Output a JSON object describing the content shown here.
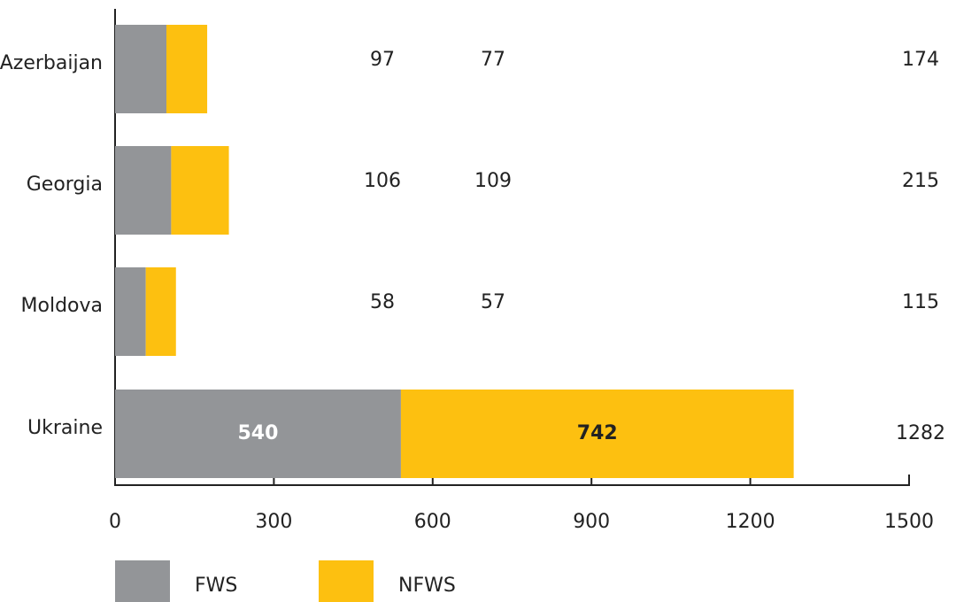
{
  "chart_data": {
    "type": "stacked-barh",
    "categories": [
      "Azerbaijan",
      "Georgia",
      "Moldova",
      "Ukraine"
    ],
    "series": [
      {
        "name": "FWS",
        "color": "#939598",
        "values": [
          97,
          106,
          58,
          540
        ]
      },
      {
        "name": "NFWS",
        "color": "#fdc010",
        "values": [
          77,
          109,
          57,
          742
        ]
      }
    ],
    "totals": [
      174,
      215,
      115,
      1282
    ],
    "xlim": [
      0,
      1500
    ],
    "xticks": [
      0,
      300,
      600,
      900,
      1200,
      1500
    ],
    "legend": "bottom-left",
    "grid": false
  }
}
